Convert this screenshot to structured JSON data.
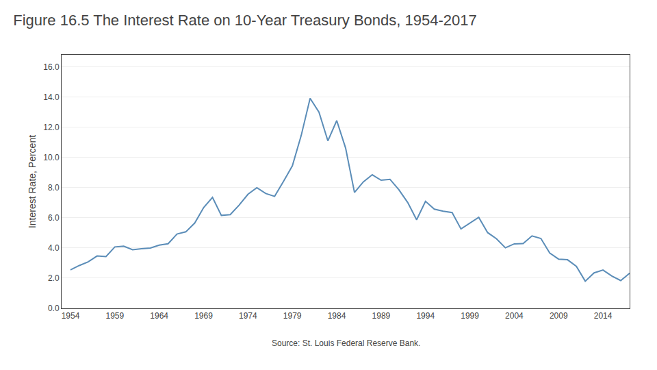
{
  "chart_data": {
    "type": "line",
    "title": "Figure 16.5 The Interest Rate on 10-Year Treasury Bonds, 1954-2017",
    "ylabel": "Interest Rate, Percent",
    "annotations": [
      "Source: St. Louis Federal Reserve Bank."
    ],
    "color": "#5b8db8",
    "grid": "y",
    "xlim": [
      1953,
      2017
    ],
    "xticks": [
      1954,
      1959,
      1964,
      1969,
      1974,
      1979,
      1984,
      1989,
      1994,
      1999,
      2004,
      2009,
      2014
    ],
    "ylim": [
      0.0,
      16.8
    ],
    "yticks": [
      {
        "value": 0.0,
        "label": "0.0"
      },
      {
        "value": 2.0,
        "label": "2.0"
      },
      {
        "value": 4.0,
        "label": "4.0"
      },
      {
        "value": 6.0,
        "label": "6.0"
      },
      {
        "value": 8.0,
        "label": "8.0"
      },
      {
        "value": 10.0,
        "label": "10.0"
      },
      {
        "value": 12.0,
        "label": "12.0"
      },
      {
        "value": 14.0,
        "label": "14.0"
      },
      {
        "value": 16.0,
        "label": "16.0"
      }
    ],
    "x": [
      1954,
      1955,
      1956,
      1957,
      1958,
      1959,
      1960,
      1961,
      1962,
      1963,
      1964,
      1965,
      1966,
      1967,
      1968,
      1969,
      1970,
      1971,
      1972,
      1973,
      1974,
      1975,
      1976,
      1977,
      1978,
      1979,
      1980,
      1981,
      1982,
      1983,
      1984,
      1985,
      1986,
      1987,
      1988,
      1989,
      1990,
      1991,
      1992,
      1993,
      1994,
      1995,
      1996,
      1997,
      1998,
      1999,
      2000,
      2001,
      2002,
      2003,
      2004,
      2005,
      2006,
      2007,
      2008,
      2009,
      2010,
      2011,
      2012,
      2013,
      2014,
      2015,
      2016,
      2017
    ],
    "values": [
      2.55,
      2.84,
      3.08,
      3.47,
      3.43,
      4.07,
      4.12,
      3.88,
      3.95,
      4.0,
      4.19,
      4.28,
      4.92,
      5.07,
      5.65,
      6.67,
      7.35,
      6.16,
      6.21,
      6.84,
      7.56,
      7.99,
      7.61,
      7.42,
      8.41,
      9.44,
      11.46,
      13.92,
      13.0,
      11.1,
      12.44,
      10.62,
      7.68,
      8.38,
      8.85,
      8.49,
      8.55,
      7.86,
      7.01,
      5.87,
      7.09,
      6.57,
      6.44,
      6.35,
      5.26,
      5.64,
      6.03,
      5.02,
      4.61,
      4.01,
      4.27,
      4.29,
      4.8,
      4.63,
      3.66,
      3.26,
      3.22,
      2.78,
      1.8,
      2.35,
      2.54,
      2.14,
      1.84,
      2.33
    ]
  }
}
